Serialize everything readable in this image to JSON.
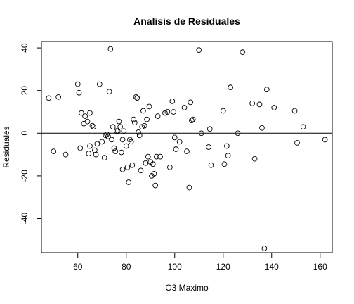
{
  "chart_data": {
    "type": "scatter",
    "title": "Analisis de Residuales",
    "xlabel": "O3 Maximo",
    "ylabel": "Residuales",
    "xlim": [
      45,
      165
    ],
    "ylim": [
      -56,
      43
    ],
    "xticks": [
      60,
      80,
      100,
      120,
      140,
      160
    ],
    "yticks": [
      -40,
      -20,
      0,
      20,
      40
    ],
    "xtick_labels": [
      "60",
      "80",
      "100",
      "120",
      "140",
      "160"
    ],
    "ytick_labels": [
      "-40",
      "-20",
      "0",
      "20",
      "40"
    ],
    "reference_line_y": 0,
    "grid": false,
    "points": [
      {
        "x": 48,
        "y": 16.5
      },
      {
        "x": 50,
        "y": -8.5
      },
      {
        "x": 52,
        "y": 17
      },
      {
        "x": 55,
        "y": -10
      },
      {
        "x": 60,
        "y": 23
      },
      {
        "x": 60.5,
        "y": 19
      },
      {
        "x": 61,
        "y": -7
      },
      {
        "x": 61.5,
        "y": 9.5
      },
      {
        "x": 62.5,
        "y": 4.5
      },
      {
        "x": 63,
        "y": 8
      },
      {
        "x": 64,
        "y": 5.5
      },
      {
        "x": 64.5,
        "y": -9.5
      },
      {
        "x": 65,
        "y": 9.5
      },
      {
        "x": 65,
        "y": -6
      },
      {
        "x": 66,
        "y": 3.5
      },
      {
        "x": 66.5,
        "y": 3
      },
      {
        "x": 67,
        "y": -8
      },
      {
        "x": 67.5,
        "y": -10
      },
      {
        "x": 68,
        "y": -5
      },
      {
        "x": 69,
        "y": 23
      },
      {
        "x": 70,
        "y": -4
      },
      {
        "x": 71,
        "y": -11.5
      },
      {
        "x": 71.5,
        "y": -1
      },
      {
        "x": 72,
        "y": -0.5
      },
      {
        "x": 72.5,
        "y": -1.5
      },
      {
        "x": 73,
        "y": 19.5
      },
      {
        "x": 73.5,
        "y": 39.5
      },
      {
        "x": 74,
        "y": -3
      },
      {
        "x": 74.5,
        "y": 3
      },
      {
        "x": 75,
        "y": -7
      },
      {
        "x": 75.5,
        "y": -8.5
      },
      {
        "x": 76,
        "y": 1
      },
      {
        "x": 76.5,
        "y": 1
      },
      {
        "x": 77,
        "y": 5.5
      },
      {
        "x": 77.5,
        "y": 3
      },
      {
        "x": 78,
        "y": -9
      },
      {
        "x": 78.5,
        "y": -17
      },
      {
        "x": 78.5,
        "y": -3
      },
      {
        "x": 79,
        "y": 1
      },
      {
        "x": 80,
        "y": -6
      },
      {
        "x": 80.5,
        "y": -16
      },
      {
        "x": 81,
        "y": -23
      },
      {
        "x": 81.5,
        "y": -3
      },
      {
        "x": 82,
        "y": -4
      },
      {
        "x": 82.5,
        "y": -15
      },
      {
        "x": 83,
        "y": 6.5
      },
      {
        "x": 83.5,
        "y": 5
      },
      {
        "x": 84,
        "y": 17
      },
      {
        "x": 84.5,
        "y": 16.5
      },
      {
        "x": 85,
        "y": 0.5
      },
      {
        "x": 85.5,
        "y": -1
      },
      {
        "x": 86,
        "y": -17.5
      },
      {
        "x": 86.5,
        "y": 3
      },
      {
        "x": 87,
        "y": 10.5
      },
      {
        "x": 87.5,
        "y": 3.5
      },
      {
        "x": 88,
        "y": -14
      },
      {
        "x": 88.5,
        "y": 6.5
      },
      {
        "x": 89,
        "y": -11
      },
      {
        "x": 89.5,
        "y": 12.5
      },
      {
        "x": 90,
        "y": -13.5
      },
      {
        "x": 90.5,
        "y": -20
      },
      {
        "x": 91,
        "y": -14.5
      },
      {
        "x": 91.5,
        "y": -19
      },
      {
        "x": 92,
        "y": -24.5
      },
      {
        "x": 92.5,
        "y": -11
      },
      {
        "x": 93,
        "y": 8
      },
      {
        "x": 94,
        "y": -11
      },
      {
        "x": 96,
        "y": 9.5
      },
      {
        "x": 97,
        "y": 10
      },
      {
        "x": 98,
        "y": -16
      },
      {
        "x": 99,
        "y": 15
      },
      {
        "x": 99.5,
        "y": 10
      },
      {
        "x": 100,
        "y": -2
      },
      {
        "x": 100.5,
        "y": -7.5
      },
      {
        "x": 102,
        "y": -4
      },
      {
        "x": 104,
        "y": 12
      },
      {
        "x": 105,
        "y": -8.5
      },
      {
        "x": 106,
        "y": -25.5
      },
      {
        "x": 106.5,
        "y": 14.5
      },
      {
        "x": 107,
        "y": 6
      },
      {
        "x": 107.5,
        "y": 6.5
      },
      {
        "x": 110,
        "y": 39
      },
      {
        "x": 111,
        "y": 0
      },
      {
        "x": 114,
        "y": -6.5
      },
      {
        "x": 114.5,
        "y": 2
      },
      {
        "x": 115,
        "y": -15
      },
      {
        "x": 120,
        "y": 10.5
      },
      {
        "x": 120.5,
        "y": -14.5
      },
      {
        "x": 121.5,
        "y": -6
      },
      {
        "x": 122,
        "y": -10.5
      },
      {
        "x": 123,
        "y": 21.5
      },
      {
        "x": 126,
        "y": 0
      },
      {
        "x": 128,
        "y": 38
      },
      {
        "x": 132,
        "y": 14
      },
      {
        "x": 133,
        "y": -12
      },
      {
        "x": 135,
        "y": 13.5
      },
      {
        "x": 136,
        "y": 2.5
      },
      {
        "x": 137,
        "y": -54
      },
      {
        "x": 138,
        "y": 20.5
      },
      {
        "x": 141,
        "y": 12
      },
      {
        "x": 149.5,
        "y": 10.5
      },
      {
        "x": 150.5,
        "y": -4.5
      },
      {
        "x": 153,
        "y": 3
      },
      {
        "x": 162,
        "y": -3
      }
    ]
  }
}
